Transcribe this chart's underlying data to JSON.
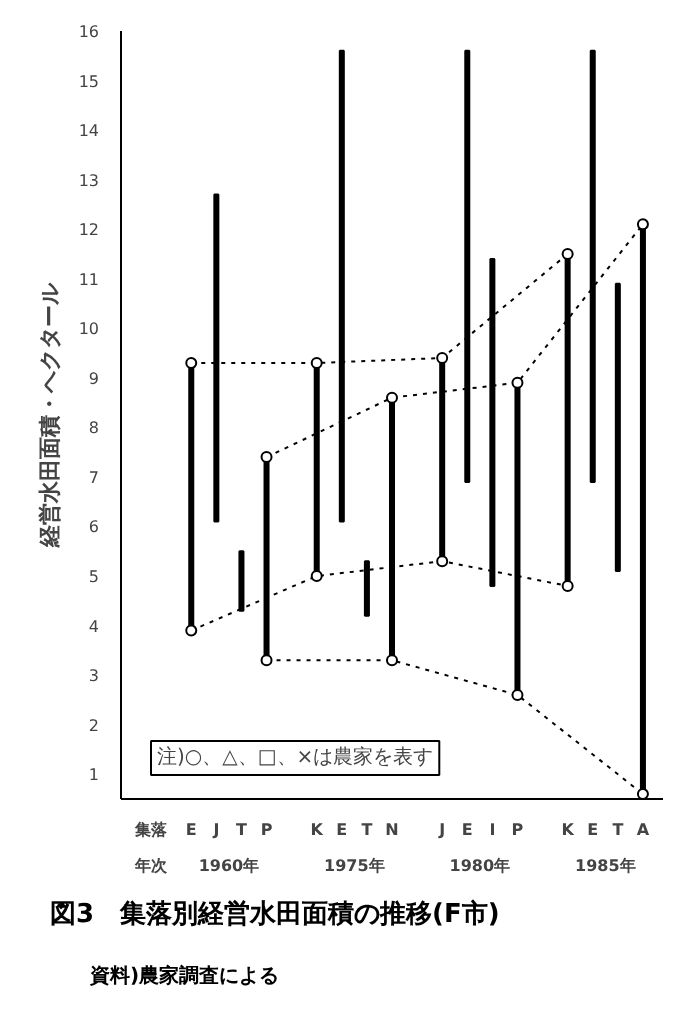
{
  "chart_data": {
    "type": "bar",
    "title": "図3　集落別経営水田面積の推移(F市)",
    "ylabel": "経営水田面積・ヘクタール",
    "categories": [
      "E",
      "J",
      "T",
      "P",
      "K",
      "E",
      "T",
      "N",
      "J",
      "E",
      "I",
      "P",
      "K",
      "E",
      "T",
      "A"
    ],
    "series": [
      {
        "color": "#000000",
        "base": [
          3.9,
          6.1,
          4.3,
          3.3,
          5.0,
          6.1,
          4.2,
          3.3,
          5.3,
          6.9,
          4.8,
          2.6,
          4.8,
          6.9,
          5.1,
          0.6
        ],
        "values": [
          5.4,
          6.6,
          1.2,
          4.1,
          4.3,
          9.5,
          1.1,
          5.3,
          4.1,
          8.7,
          6.6,
          6.3,
          6.7,
          8.7,
          5.8,
          11.5
        ]
      },
      {
        "type": "line",
        "color": "#000000",
        "line_style": "dotted",
        "marker": "circle",
        "values": [
          9.3,
          null,
          null,
          null,
          9.3,
          null,
          null,
          null,
          9.4,
          null,
          null,
          null,
          11.5,
          null,
          null,
          null
        ]
      },
      {
        "type": "line",
        "color": "#000000",
        "line_style": "dotted",
        "marker": "circle",
        "values": [
          3.9,
          null,
          null,
          null,
          5.0,
          null,
          null,
          null,
          5.3,
          null,
          null,
          null,
          4.8,
          null,
          null,
          null
        ]
      },
      {
        "type": "line",
        "color": "#000000",
        "line_style": "dotted",
        "marker": "circle",
        "values": [
          null,
          null,
          null,
          7.4,
          null,
          null,
          null,
          8.6,
          null,
          null,
          null,
          8.9,
          null,
          null,
          null,
          12.1
        ]
      },
      {
        "type": "line",
        "color": "#000000",
        "line_style": "dotted",
        "marker": "circle",
        "values": [
          null,
          null,
          null,
          3.3,
          null,
          null,
          null,
          3.3,
          null,
          null,
          null,
          2.6,
          null,
          null,
          null,
          0.6
        ]
      }
    ],
    "ylim": [
      0.5,
      16
    ],
    "yticks": [
      1,
      2,
      3,
      4,
      5,
      6,
      7,
      8,
      9,
      10,
      11,
      12,
      13,
      14,
      15,
      16
    ],
    "annotations": [
      "1960年",
      "1975年",
      "1980年",
      "1985年",
      "集落",
      "年次",
      "注)○、△、□、×は農家を表す",
      "資料)農家調査による"
    ]
  }
}
